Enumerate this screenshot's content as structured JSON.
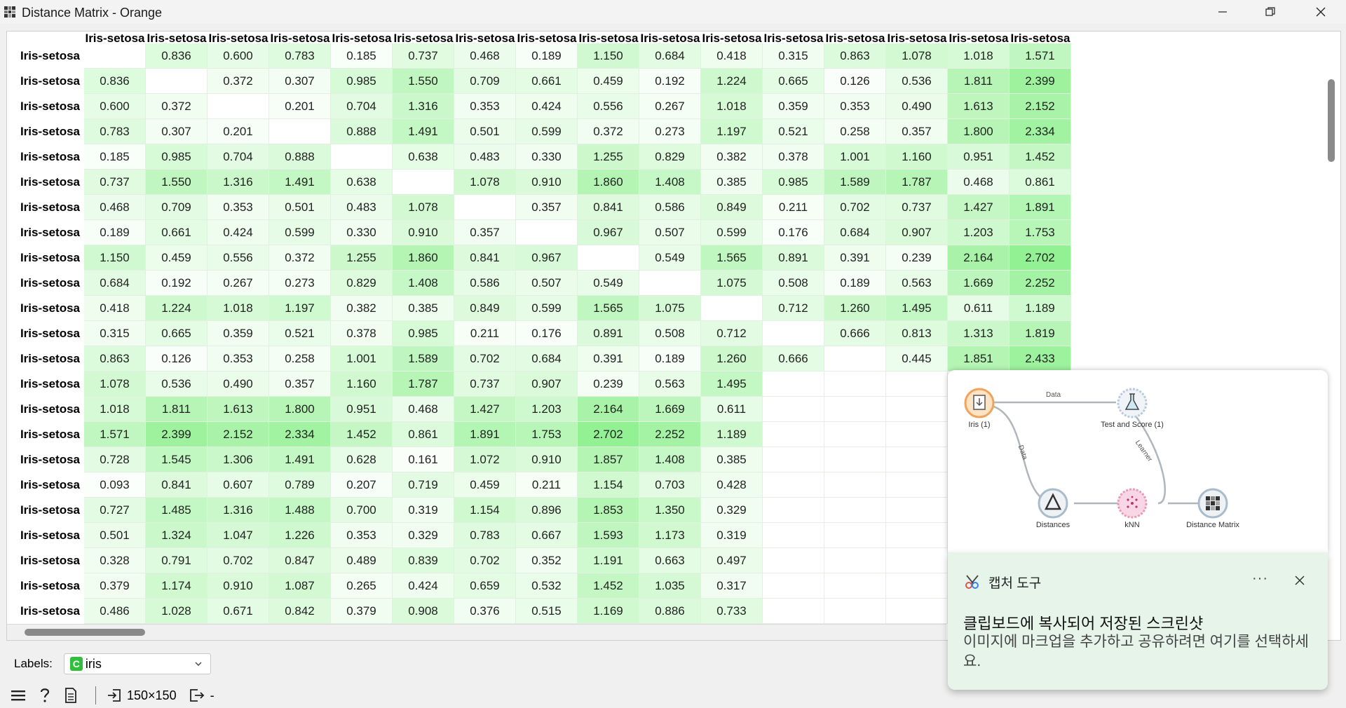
{
  "window": {
    "title": "Distance Matrix - Orange"
  },
  "matrix": {
    "column_headers": [
      "Iris-setosa",
      "Iris-setosa",
      "Iris-setosa",
      "Iris-setosa",
      "Iris-setosa",
      "Iris-setosa",
      "Iris-setosa",
      "Iris-setosa",
      "Iris-setosa",
      "Iris-setosa",
      "Iris-setosa",
      "Iris-setosa",
      "Iris-setosa",
      "Iris-setosa",
      "Iris-setosa",
      "Iris-setosa"
    ],
    "rows": [
      {
        "label": "Iris-setosa",
        "values": [
          "",
          "0.836",
          "0.600",
          "0.783",
          "0.185",
          "0.737",
          "0.468",
          "0.189",
          "1.150",
          "0.684",
          "0.418",
          "0.315",
          "0.863",
          "1.078",
          "1.018",
          "1.571"
        ]
      },
      {
        "label": "Iris-setosa",
        "values": [
          "0.836",
          "",
          "0.372",
          "0.307",
          "0.985",
          "1.550",
          "0.709",
          "0.661",
          "0.459",
          "0.192",
          "1.224",
          "0.665",
          "0.126",
          "0.536",
          "1.811",
          "2.399"
        ]
      },
      {
        "label": "Iris-setosa",
        "values": [
          "0.600",
          "0.372",
          "",
          "0.201",
          "0.704",
          "1.316",
          "0.353",
          "0.424",
          "0.556",
          "0.267",
          "1.018",
          "0.359",
          "0.353",
          "0.490",
          "1.613",
          "2.152"
        ]
      },
      {
        "label": "Iris-setosa",
        "values": [
          "0.783",
          "0.307",
          "0.201",
          "",
          "0.888",
          "1.491",
          "0.501",
          "0.599",
          "0.372",
          "0.273",
          "1.197",
          "0.521",
          "0.258",
          "0.357",
          "1.800",
          "2.334"
        ]
      },
      {
        "label": "Iris-setosa",
        "values": [
          "0.185",
          "0.985",
          "0.704",
          "0.888",
          "",
          "0.638",
          "0.483",
          "0.330",
          "1.255",
          "0.829",
          "0.382",
          "0.378",
          "1.001",
          "1.160",
          "0.951",
          "1.452"
        ]
      },
      {
        "label": "Iris-setosa",
        "values": [
          "0.737",
          "1.550",
          "1.316",
          "1.491",
          "0.638",
          "",
          "1.078",
          "0.910",
          "1.860",
          "1.408",
          "0.385",
          "0.985",
          "1.589",
          "1.787",
          "0.468",
          "0.861"
        ]
      },
      {
        "label": "Iris-setosa",
        "values": [
          "0.468",
          "0.709",
          "0.353",
          "0.501",
          "0.483",
          "1.078",
          "",
          "0.357",
          "0.841",
          "0.586",
          "0.849",
          "0.211",
          "0.702",
          "0.737",
          "1.427",
          "1.891"
        ]
      },
      {
        "label": "Iris-setosa",
        "values": [
          "0.189",
          "0.661",
          "0.424",
          "0.599",
          "0.330",
          "0.910",
          "0.357",
          "",
          "0.967",
          "0.507",
          "0.599",
          "0.176",
          "0.684",
          "0.907",
          "1.203",
          "1.753"
        ]
      },
      {
        "label": "Iris-setosa",
        "values": [
          "1.150",
          "0.459",
          "0.556",
          "0.372",
          "1.255",
          "1.860",
          "0.841",
          "0.967",
          "",
          "0.549",
          "1.565",
          "0.891",
          "0.391",
          "0.239",
          "2.164",
          "2.702"
        ]
      },
      {
        "label": "Iris-setosa",
        "values": [
          "0.684",
          "0.192",
          "0.267",
          "0.273",
          "0.829",
          "1.408",
          "0.586",
          "0.507",
          "0.549",
          "",
          "1.075",
          "0.508",
          "0.189",
          "0.563",
          "1.669",
          "2.252"
        ]
      },
      {
        "label": "Iris-setosa",
        "values": [
          "0.418",
          "1.224",
          "1.018",
          "1.197",
          "0.382",
          "0.385",
          "0.849",
          "0.599",
          "1.565",
          "1.075",
          "",
          "0.712",
          "1.260",
          "1.495",
          "0.611",
          "1.189"
        ]
      },
      {
        "label": "Iris-setosa",
        "values": [
          "0.315",
          "0.665",
          "0.359",
          "0.521",
          "0.378",
          "0.985",
          "0.211",
          "0.176",
          "0.891",
          "0.508",
          "0.712",
          "",
          "0.666",
          "0.813",
          "1.313",
          "1.819"
        ]
      },
      {
        "label": "Iris-setosa",
        "values": [
          "0.863",
          "0.126",
          "0.353",
          "0.258",
          "1.001",
          "1.589",
          "0.702",
          "0.684",
          "0.391",
          "0.189",
          "1.260",
          "0.666",
          "",
          "0.445",
          "1.851",
          "2.433"
        ]
      },
      {
        "label": "Iris-setosa",
        "values": [
          "1.078",
          "0.536",
          "0.490",
          "0.357",
          "1.160",
          "1.787",
          "0.737",
          "0.907",
          "0.239",
          "0.563",
          "1.495",
          "",
          "",
          "",
          "",
          ""
        ]
      },
      {
        "label": "Iris-setosa",
        "values": [
          "1.018",
          "1.811",
          "1.613",
          "1.800",
          "0.951",
          "0.468",
          "1.427",
          "1.203",
          "2.164",
          "1.669",
          "0.611",
          "",
          "",
          "",
          "",
          ""
        ]
      },
      {
        "label": "Iris-setosa",
        "values": [
          "1.571",
          "2.399",
          "2.152",
          "2.334",
          "1.452",
          "0.861",
          "1.891",
          "1.753",
          "2.702",
          "2.252",
          "1.189",
          "",
          "",
          "",
          "",
          ""
        ]
      },
      {
        "label": "Iris-setosa",
        "values": [
          "0.728",
          "1.545",
          "1.306",
          "1.491",
          "0.628",
          "0.161",
          "1.072",
          "0.910",
          "1.857",
          "1.408",
          "0.385",
          "",
          "",
          "",
          "",
          ""
        ]
      },
      {
        "label": "Iris-setosa",
        "values": [
          "0.093",
          "0.841",
          "0.607",
          "0.789",
          "0.207",
          "0.719",
          "0.459",
          "0.211",
          "1.154",
          "0.703",
          "0.428",
          "",
          "",
          "",
          "",
          ""
        ]
      },
      {
        "label": "Iris-setosa",
        "values": [
          "0.727",
          "1.485",
          "1.316",
          "1.488",
          "0.700",
          "0.319",
          "1.154",
          "0.896",
          "1.853",
          "1.350",
          "0.329",
          "",
          "",
          "",
          "",
          ""
        ]
      },
      {
        "label": "Iris-setosa",
        "values": [
          "0.501",
          "1.324",
          "1.047",
          "1.226",
          "0.353",
          "0.329",
          "0.783",
          "0.667",
          "1.593",
          "1.173",
          "0.319",
          "",
          "",
          "",
          "",
          ""
        ]
      },
      {
        "label": "Iris-setosa",
        "values": [
          "0.328",
          "0.791",
          "0.702",
          "0.847",
          "0.489",
          "0.839",
          "0.702",
          "0.352",
          "1.191",
          "0.663",
          "0.497",
          "",
          "",
          "",
          "",
          ""
        ]
      },
      {
        "label": "Iris-setosa",
        "values": [
          "0.379",
          "1.174",
          "0.910",
          "1.087",
          "0.265",
          "0.424",
          "0.659",
          "0.532",
          "1.452",
          "1.035",
          "0.317",
          "",
          "",
          "",
          "",
          ""
        ]
      },
      {
        "label": "Iris-setosa",
        "values": [
          "0.486",
          "1.028",
          "0.671",
          "0.842",
          "0.379",
          "0.908",
          "0.376",
          "0.515",
          "1.169",
          "0.886",
          "0.733",
          "",
          "",
          "",
          "",
          ""
        ]
      }
    ]
  },
  "controls": {
    "labels_label": "Labels:",
    "labels_badge": "C",
    "labels_value": "iris"
  },
  "statusbar": {
    "size_text": "150×150",
    "output_text": "-"
  },
  "workflow": {
    "nodes": {
      "iris": "Iris (1)",
      "test_and_score": "Test and Score (1)",
      "distances": "Distances",
      "knn": "kNN",
      "distance_matrix": "Distance Matrix"
    },
    "edges": {
      "data_top": "Data",
      "data_side": "Data",
      "learner": "Learner"
    }
  },
  "toast": {
    "app_name": "캡처 도구",
    "more": "···",
    "title": "클립보드에 복사되어 저장된 스크린샷",
    "body": "이미지에 마크업을 추가하고 공유하려면 여기를 선택하세요."
  },
  "colors": {
    "cell_max": "#8ef08e",
    "cell_min": "#ffffff",
    "toast_bg": "#e6f4ea",
    "label_badge": "#2fbf3a"
  }
}
